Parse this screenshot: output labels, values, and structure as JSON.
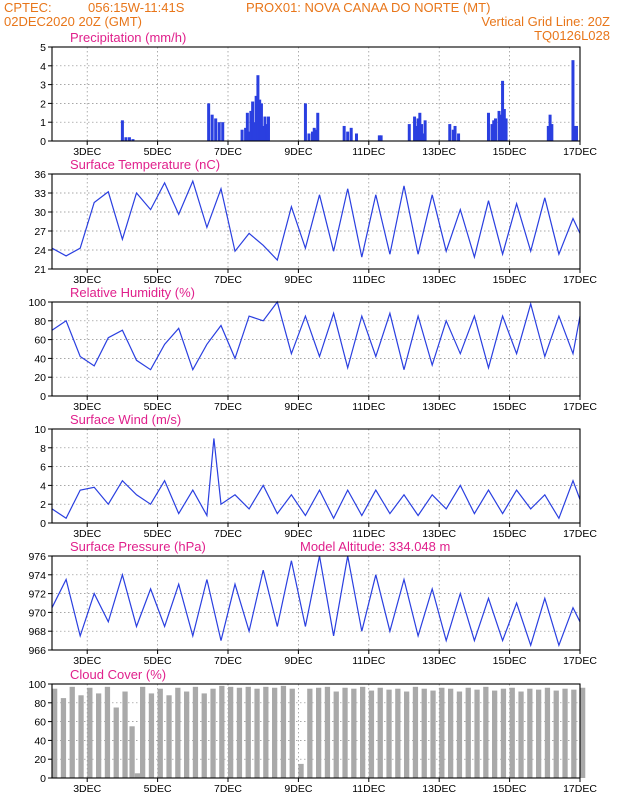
{
  "header": {
    "line1_left": "CPTEC:",
    "line1_coord": "056:15W-11:41S",
    "line1_station": "PROX01: NOVA CANAA DO NORTE (MT)",
    "line2_left": "02DEC2020 20Z (GMT)",
    "line2_right": "Vertical Grid Line: 20Z",
    "line3_right": "TQ0126L028"
  },
  "x_ticks": [
    "3DEC",
    "5DEC",
    "7DEC",
    "9DEC",
    "11DEC",
    "13DEC",
    "15DEC",
    "17DEC"
  ],
  "chart_data": [
    {
      "type": "bar",
      "title": "Precipitation (mm/h)",
      "ylim": [
        0,
        5
      ],
      "yticks": [
        "0",
        "1",
        "2",
        "3",
        "4",
        "5"
      ],
      "color": "#2a3fe0",
      "x_days": [
        4.0,
        4.1,
        4.2,
        4.3,
        6.45,
        6.55,
        6.65,
        6.75,
        6.85,
        7.4,
        7.5,
        7.55,
        7.6,
        7.65,
        7.7,
        7.75,
        7.8,
        7.85,
        7.9,
        7.95,
        8.0,
        8.05,
        8.1,
        8.15,
        9.2,
        9.3,
        9.4,
        9.45,
        9.5,
        9.55,
        10.3,
        10.4,
        10.5,
        10.65,
        11.3,
        11.35,
        12.15,
        12.3,
        12.35,
        12.4,
        12.45,
        12.5,
        12.55,
        12.6,
        13.3,
        13.4,
        13.45,
        13.55,
        14.4,
        14.5,
        14.55,
        14.6,
        14.7,
        14.75,
        14.8,
        14.85,
        14.9,
        16.1,
        16.15,
        16.2,
        16.8,
        16.85,
        16.9
      ],
      "values": [
        1.1,
        0.2,
        0.2,
        0.1,
        2.0,
        1.4,
        1.2,
        1.0,
        1.0,
        0.6,
        0.7,
        1.5,
        0.5,
        1.6,
        2.1,
        1.0,
        2.4,
        3.5,
        2.2,
        2.0,
        0.8,
        1.3,
        0.9,
        1.3,
        2.0,
        0.4,
        0.5,
        0.7,
        0.6,
        1.5,
        0.8,
        0.5,
        0.7,
        0.4,
        0.3,
        0.3,
        0.9,
        1.3,
        0.8,
        1.2,
        1.5,
        0.9,
        0.4,
        1.1,
        0.9,
        0.6,
        0.8,
        0.4,
        1.5,
        0.9,
        1.1,
        1.2,
        1.6,
        1.4,
        3.2,
        1.7,
        1.2,
        0.8,
        1.4,
        0.9,
        4.3,
        0.8,
        0.8
      ]
    },
    {
      "type": "line",
      "title": "Surface Temperature (nC)",
      "ylim": [
        21,
        37
      ],
      "yticks": [
        "21",
        "24",
        "27",
        "30",
        "33",
        "36"
      ],
      "color": "#2a3fe0",
      "x_days": [
        2.0,
        2.4,
        2.8,
        3.2,
        3.6,
        4.0,
        4.4,
        4.8,
        5.2,
        5.6,
        6.0,
        6.4,
        6.8,
        7.2,
        7.6,
        8.0,
        8.4,
        8.8,
        9.2,
        9.6,
        10.0,
        10.4,
        10.8,
        11.2,
        11.6,
        12.0,
        12.4,
        12.8,
        13.2,
        13.6,
        14.0,
        14.4,
        14.8,
        15.2,
        15.6,
        16.0,
        16.4,
        16.8,
        17.0
      ],
      "values": [
        24.5,
        23.2,
        24.5,
        32.2,
        34.0,
        26.0,
        33.8,
        31.0,
        35.5,
        30.2,
        35.8,
        28.0,
        34.5,
        24.0,
        27.0,
        25.0,
        22.5,
        31.5,
        24.5,
        33.5,
        24.0,
        34.5,
        23.0,
        33.5,
        23.5,
        35.0,
        23.5,
        33.5,
        24.0,
        31.0,
        23.0,
        32.5,
        23.5,
        32.0,
        24.0,
        33.0,
        23.5,
        29.5,
        27.0
      ]
    },
    {
      "type": "line",
      "title": "Relative Humidity (%)",
      "ylim": [
        0,
        100
      ],
      "yticks": [
        "0",
        "20",
        "40",
        "60",
        "80",
        "100"
      ],
      "color": "#2a3fe0",
      "x_days": [
        2.0,
        2.4,
        2.8,
        3.2,
        3.6,
        4.0,
        4.4,
        4.8,
        5.2,
        5.6,
        6.0,
        6.4,
        6.8,
        7.2,
        7.6,
        8.0,
        8.4,
        8.8,
        9.2,
        9.6,
        10.0,
        10.4,
        10.8,
        11.2,
        11.6,
        12.0,
        12.4,
        12.8,
        13.2,
        13.6,
        14.0,
        14.4,
        14.8,
        15.2,
        15.6,
        16.0,
        16.4,
        16.8,
        17.0
      ],
      "values": [
        70,
        80,
        42,
        32,
        62,
        70,
        38,
        28,
        55,
        72,
        28,
        55,
        75,
        40,
        85,
        80,
        100,
        45,
        85,
        42,
        88,
        30,
        85,
        42,
        88,
        28,
        85,
        33,
        80,
        45,
        85,
        30,
        85,
        45,
        98,
        42,
        85,
        45,
        85
      ]
    },
    {
      "type": "line",
      "title": "Surface Wind (m/s)",
      "ylim": [
        0,
        10
      ],
      "yticks": [
        "0",
        "2",
        "4",
        "6",
        "8",
        "10"
      ],
      "color": "#2a3fe0",
      "x_days": [
        2.0,
        2.4,
        2.8,
        3.2,
        3.6,
        4.0,
        4.4,
        4.8,
        5.2,
        5.6,
        6.0,
        6.4,
        6.6,
        6.8,
        7.2,
        7.6,
        8.0,
        8.4,
        8.8,
        9.2,
        9.6,
        10.0,
        10.4,
        10.8,
        11.2,
        11.6,
        12.0,
        12.4,
        12.8,
        13.2,
        13.6,
        14.0,
        14.4,
        14.8,
        15.2,
        15.6,
        16.0,
        16.4,
        16.8,
        17.0
      ],
      "values": [
        1.5,
        0.5,
        3.5,
        3.8,
        2.0,
        4.5,
        3.0,
        2.0,
        4.5,
        1.0,
        3.5,
        0.8,
        9.0,
        2.0,
        3.0,
        1.5,
        4.0,
        1.0,
        3.0,
        0.8,
        3.5,
        0.5,
        3.5,
        0.8,
        3.5,
        1.0,
        3.0,
        0.8,
        3.0,
        1.5,
        4.0,
        1.0,
        3.5,
        1.0,
        3.5,
        1.5,
        3.0,
        0.5,
        4.5,
        2.5
      ]
    },
    {
      "type": "line",
      "title": "Surface Pressure (hPa)",
      "annotation": "Model Altitude: 334.048 m",
      "ylim": [
        966,
        976
      ],
      "yticks": [
        "966",
        "968",
        "970",
        "972",
        "974",
        "976"
      ],
      "color": "#2a3fe0",
      "x_days": [
        2.0,
        2.4,
        2.8,
        3.2,
        3.6,
        4.0,
        4.4,
        4.8,
        5.2,
        5.6,
        6.0,
        6.4,
        6.8,
        7.2,
        7.6,
        8.0,
        8.4,
        8.8,
        9.2,
        9.6,
        10.0,
        10.4,
        10.8,
        11.2,
        11.6,
        12.0,
        12.4,
        12.8,
        13.2,
        13.6,
        14.0,
        14.4,
        14.8,
        15.2,
        15.6,
        16.0,
        16.4,
        16.8,
        17.0
      ],
      "values": [
        970.5,
        973.5,
        967.5,
        972.0,
        969.0,
        974.0,
        968.5,
        972.5,
        968.5,
        973.0,
        967.5,
        973.5,
        967.0,
        973.0,
        968.0,
        974.5,
        968.5,
        975.5,
        968.5,
        976.0,
        967.5,
        976.0,
        968.0,
        974.0,
        968.0,
        973.5,
        967.5,
        972.5,
        967.0,
        972.0,
        967.0,
        971.5,
        967.0,
        971.0,
        966.5,
        971.5,
        966.5,
        970.5,
        969.0
      ]
    },
    {
      "type": "bar",
      "title": "Cloud Cover (%)",
      "ylim": [
        0,
        100
      ],
      "yticks": [
        "0",
        "20",
        "40",
        "60",
        "80",
        "100"
      ],
      "color": "#a9a9a9",
      "x_days": [
        2.0,
        2.25,
        2.5,
        2.75,
        3.0,
        3.25,
        3.5,
        3.75,
        4.0,
        4.2,
        4.35,
        4.5,
        4.75,
        5.0,
        5.25,
        5.5,
        5.75,
        6.0,
        6.25,
        6.5,
        6.75,
        7.0,
        7.25,
        7.5,
        7.75,
        8.0,
        8.25,
        8.5,
        8.75,
        9.0,
        9.25,
        9.5,
        9.75,
        10.0,
        10.25,
        10.5,
        10.75,
        11.0,
        11.25,
        11.5,
        11.75,
        12.0,
        12.25,
        12.5,
        12.75,
        13.0,
        13.25,
        13.5,
        13.75,
        14.0,
        14.25,
        14.5,
        14.75,
        15.0,
        15.25,
        15.5,
        15.75,
        16.0,
        16.25,
        16.5,
        16.75,
        17.0
      ],
      "values": [
        95,
        85,
        97,
        88,
        96,
        90,
        97,
        75,
        92,
        55,
        5,
        97,
        90,
        95,
        88,
        96,
        92,
        97,
        90,
        95,
        98,
        97,
        96,
        97,
        95,
        97,
        96,
        98,
        95,
        15,
        95,
        96,
        97,
        92,
        96,
        95,
        97,
        93,
        96,
        94,
        95,
        92,
        97,
        95,
        93,
        96,
        95,
        92,
        96,
        94,
        97,
        93,
        95,
        96,
        92,
        95,
        94,
        96,
        93,
        95,
        94,
        96
      ]
    }
  ]
}
